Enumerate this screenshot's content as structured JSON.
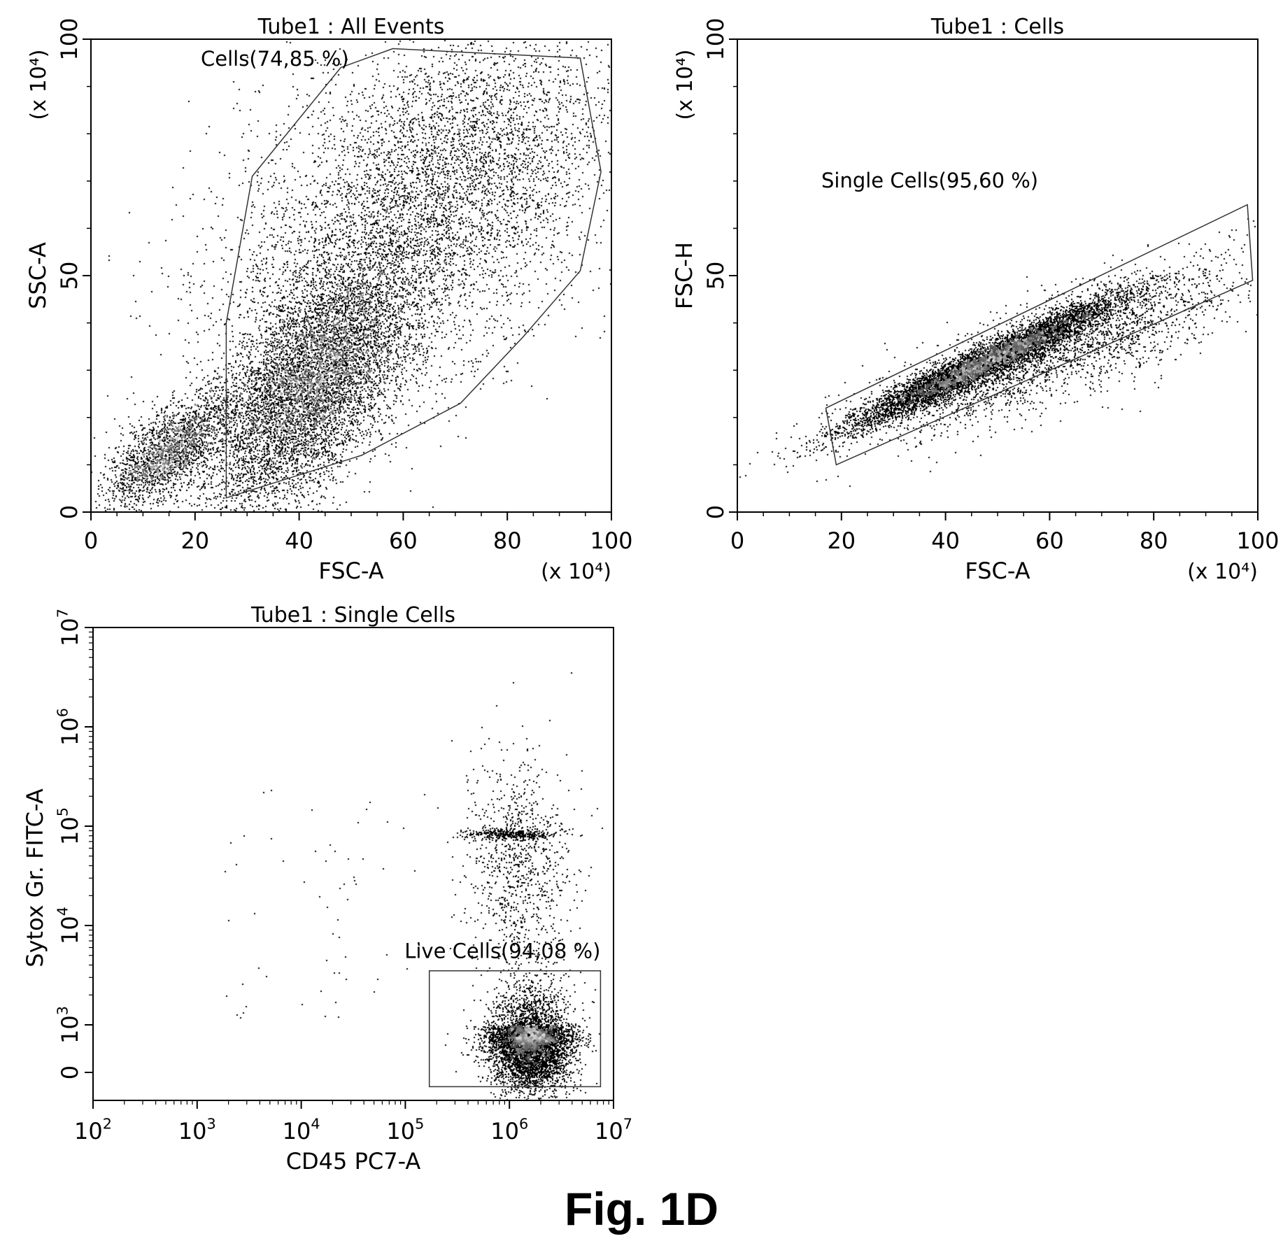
{
  "figure_label": "Fig. 1D",
  "chart_data": [
    {
      "type": "scatter",
      "title": "Tube1 : All Events",
      "xlabel": "FSC-A",
      "ylabel": "SSC-A",
      "x_unit": "(x 10⁴)",
      "y_unit": "(x 10⁴)",
      "xlim": [
        0,
        100
      ],
      "ylim": [
        0,
        100
      ],
      "x_ticks": [
        "0",
        "20",
        "40",
        "60",
        "80",
        "100"
      ],
      "y_ticks": [
        "0",
        "50",
        "100"
      ],
      "gate": {
        "label": "Cells(74,85 %)",
        "polygon": [
          [
            26,
            3
          ],
          [
            52,
            12
          ],
          [
            71,
            23
          ],
          [
            83,
            37
          ],
          [
            94,
            51
          ],
          [
            98,
            72
          ],
          [
            94,
            96
          ],
          [
            58,
            98
          ],
          [
            48,
            94
          ],
          [
            31,
            71
          ],
          [
            26,
            40
          ]
        ]
      },
      "populations": [
        {
          "cx": 42,
          "cy": 27,
          "sx": 10,
          "sy": 14,
          "rho": 0.65,
          "n": 7000
        },
        {
          "cx": 15,
          "cy": 13,
          "sx": 6,
          "sy": 6,
          "rho": 0.7,
          "n": 2200
        },
        {
          "cx": 58,
          "cy": 58,
          "sx": 18,
          "sy": 20,
          "rho": 0.4,
          "n": 4500
        },
        {
          "cx": 75,
          "cy": 78,
          "sx": 14,
          "sy": 14,
          "rho": 0.2,
          "n": 1800
        }
      ]
    },
    {
      "type": "scatter",
      "title": "Tube1 : Cells",
      "xlabel": "FSC-A",
      "ylabel": "FSC-H",
      "x_unit": "(x 10⁴)",
      "y_unit": "(x 10⁴)",
      "xlim": [
        0,
        100
      ],
      "ylim": [
        0,
        100
      ],
      "x_ticks": [
        "0",
        "20",
        "40",
        "60",
        "80",
        "100"
      ],
      "y_ticks": [
        "0",
        "50",
        "100"
      ],
      "gate": {
        "label": "Single Cells(95,60 %)",
        "polygon": [
          [
            17,
            22
          ],
          [
            98,
            65
          ],
          [
            99,
            49
          ],
          [
            19,
            10
          ]
        ]
      },
      "populations": [
        {
          "cx": 48,
          "cy": 32,
          "sx": 13,
          "sy": 7,
          "rho": 0.96,
          "n": 6500
        },
        {
          "cx": 60,
          "cy": 34,
          "sx": 18,
          "sy": 9,
          "rho": 0.8,
          "n": 2500
        }
      ]
    },
    {
      "type": "scatter",
      "title": "Tube1 : Single Cells",
      "xlabel": "CD45 PC7-A",
      "ylabel": "Sytox Gr. FITC-A",
      "x_scale": "log",
      "y_scale": "log",
      "xlim": [
        100,
        10000000
      ],
      "ylim": [
        0,
        10000000
      ],
      "x_ticks": [
        {
          "base": "10",
          "exp": "2"
        },
        {
          "base": "10",
          "exp": "3"
        },
        {
          "base": "10",
          "exp": "4"
        },
        {
          "base": "10",
          "exp": "5"
        },
        {
          "base": "10",
          "exp": "6"
        },
        {
          "base": "10",
          "exp": "7"
        }
      ],
      "y_ticks": [
        {
          "base": "0",
          "exp": ""
        },
        {
          "base": "10",
          "exp": "3"
        },
        {
          "base": "10",
          "exp": "4"
        },
        {
          "base": "10",
          "exp": "5"
        },
        {
          "base": "10",
          "exp": "6"
        },
        {
          "base": "10",
          "exp": "7"
        }
      ],
      "gate": {
        "label": "Live Cells(94,08 %)",
        "rect_x": [
          170000,
          7500000
        ],
        "rect_y": [
          -300,
          3500
        ]
      },
      "populations": [
        {
          "cx_log": 6.2,
          "cy_log": 2.55,
          "sx": 0.2,
          "sy": 0.4,
          "n": 5500
        },
        {
          "cx_log": 6.1,
          "cy_log": 4.6,
          "sx": 0.25,
          "sy": 0.55,
          "n": 900
        },
        {
          "cx_log": 6.0,
          "cy_log": 4.92,
          "sx": 0.22,
          "sy": 0.03,
          "n": 350
        }
      ]
    }
  ]
}
